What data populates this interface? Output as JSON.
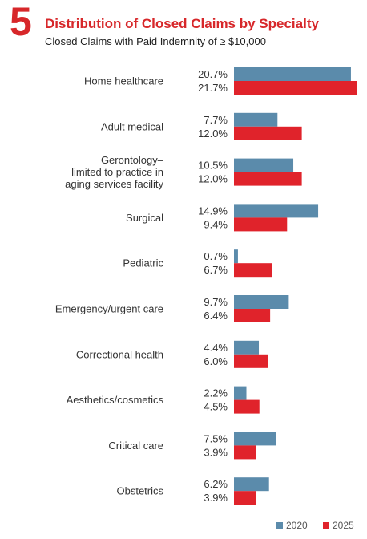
{
  "figure_number": "5",
  "colors": {
    "accent": "#d7272a",
    "series_2020": "#5b8bab",
    "series_2025": "#e0232b"
  },
  "chart_data": {
    "type": "bar",
    "orientation": "horizontal",
    "title": "Distribution of Closed Claims by Specialty",
    "subtitle": "Closed Claims with Paid Indemnity of ≥ $10,000",
    "categories": [
      "Home healthcare",
      "Adult medical",
      "Gerontology– limited to practice in aging services facility",
      "Surgical",
      "Pediatric",
      "Emergency/urgent care",
      "Correctional health",
      "Aesthetics/cosmetics",
      "Critical care",
      "Obstetrics"
    ],
    "category_lines": [
      [
        "Home healthcare"
      ],
      [
        "Adult medical"
      ],
      [
        "Gerontology–",
        "limited to practice in",
        "aging services facility"
      ],
      [
        "Surgical"
      ],
      [
        "Pediatric"
      ],
      [
        "Emergency/urgent care"
      ],
      [
        "Correctional health"
      ],
      [
        "Aesthetics/cosmetics"
      ],
      [
        "Critical care"
      ],
      [
        "Obstetrics"
      ]
    ],
    "series": [
      {
        "name": "2020",
        "values": [
          20.7,
          7.7,
          10.5,
          14.9,
          0.7,
          9.7,
          4.4,
          2.2,
          7.5,
          6.2
        ],
        "labels": [
          "20.7%",
          "7.7%",
          "10.5%",
          "14.9%",
          "0.7%",
          "9.7%",
          "4.4%",
          "2.2%",
          "7.5%",
          "6.2%"
        ]
      },
      {
        "name": "2025",
        "values": [
          21.7,
          12.0,
          12.0,
          9.4,
          6.7,
          6.4,
          6.0,
          4.5,
          3.9,
          3.9
        ],
        "labels": [
          "21.7%",
          "12.0%",
          "12.0%",
          "9.4%",
          "6.7%",
          "6.4%",
          "6.0%",
          "4.5%",
          "3.9%",
          "3.9%"
        ]
      }
    ],
    "xlim": [
      0,
      21.7
    ],
    "grid": false,
    "legend_position": "bottom-right"
  }
}
